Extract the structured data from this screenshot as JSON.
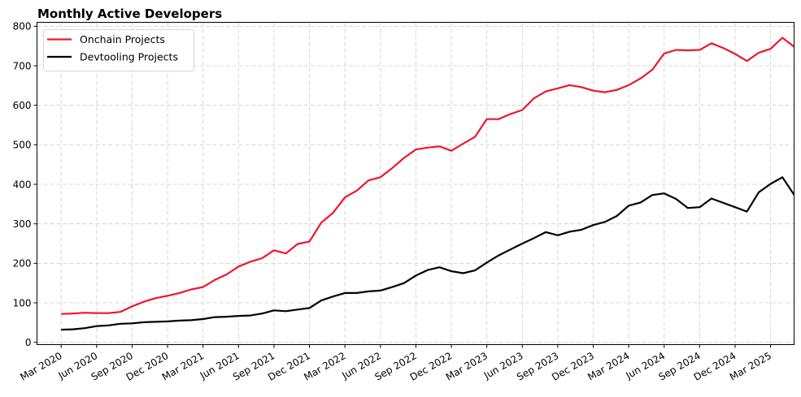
{
  "chart_data": {
    "type": "line",
    "title": "Monthly Active Developers",
    "xlabel": "",
    "ylabel": "",
    "ylim": [
      0,
      810
    ],
    "grid": true,
    "legend_position": "upper left",
    "x_start": "Mar 2020",
    "x_end": "May 2025",
    "x": [
      "Mar 2020",
      "Apr 2020",
      "May 2020",
      "Jun 2020",
      "Jul 2020",
      "Aug 2020",
      "Sep 2020",
      "Oct 2020",
      "Nov 2020",
      "Dec 2020",
      "Jan 2021",
      "Feb 2021",
      "Mar 2021",
      "Apr 2021",
      "May 2021",
      "Jun 2021",
      "Jul 2021",
      "Aug 2021",
      "Sep 2021",
      "Oct 2021",
      "Nov 2021",
      "Dec 2021",
      "Jan 2022",
      "Feb 2022",
      "Mar 2022",
      "Apr 2022",
      "May 2022",
      "Jun 2022",
      "Jul 2022",
      "Aug 2022",
      "Sep 2022",
      "Oct 2022",
      "Nov 2022",
      "Dec 2022",
      "Jan 2023",
      "Feb 2023",
      "Mar 2023",
      "Apr 2023",
      "May 2023",
      "Jun 2023",
      "Jul 2023",
      "Aug 2023",
      "Sep 2023",
      "Oct 2023",
      "Nov 2023",
      "Dec 2023",
      "Jan 2024",
      "Feb 2024",
      "Mar 2024",
      "Apr 2024",
      "May 2024",
      "Jun 2024",
      "Jul 2024",
      "Aug 2024",
      "Sep 2024",
      "Oct 2024",
      "Nov 2024",
      "Dec 2024",
      "Jan 2025",
      "Feb 2025",
      "Mar 2025",
      "Apr 2025",
      "May 2025"
    ],
    "x_tick_labels": [
      "Mar 2020",
      "Jun 2020",
      "Sep 2020",
      "Dec 2020",
      "Mar 2021",
      "Jun 2021",
      "Sep 2021",
      "Dec 2021",
      "Mar 2022",
      "Jun 2022",
      "Sep 2022",
      "Dec 2022",
      "Mar 2023",
      "Jun 2023",
      "Sep 2023",
      "Dec 2023",
      "Mar 2024",
      "Jun 2024",
      "Sep 2024",
      "Dec 2024",
      "Mar 2025"
    ],
    "y_ticks": [
      0,
      100,
      200,
      300,
      400,
      500,
      600,
      700,
      800
    ],
    "series": [
      {
        "name": "Onchain Projects",
        "color": "#f0142d",
        "values": [
          72,
          73,
          75,
          74,
          74,
          77,
          91,
          103,
          112,
          118,
          125,
          134,
          140,
          158,
          172,
          192,
          204,
          213,
          233,
          225,
          249,
          255,
          303,
          328,
          367,
          384,
          410,
          418,
          441,
          467,
          488,
          493,
          496,
          485,
          503,
          520,
          565,
          565,
          578,
          588,
          618,
          635,
          643,
          651,
          646,
          637,
          633,
          639,
          651,
          668,
          690,
          731,
          740,
          739,
          740,
          757,
          745,
          730,
          712,
          733,
          743,
          771,
          748
        ]
      },
      {
        "name": "Devtooling Projects",
        "color": "#000000",
        "values": [
          32,
          33,
          36,
          41,
          43,
          47,
          48,
          51,
          52,
          53,
          55,
          56,
          59,
          64,
          65,
          67,
          68,
          73,
          81,
          79,
          83,
          87,
          106,
          116,
          125,
          125,
          129,
          131,
          140,
          150,
          169,
          183,
          190,
          180,
          175,
          182,
          202,
          220,
          235,
          250,
          264,
          279,
          271,
          280,
          285,
          297,
          305,
          320,
          346,
          354,
          373,
          377,
          363,
          340,
          342,
          364,
          353,
          342,
          331,
          380,
          401,
          418,
          373
        ]
      }
    ]
  }
}
